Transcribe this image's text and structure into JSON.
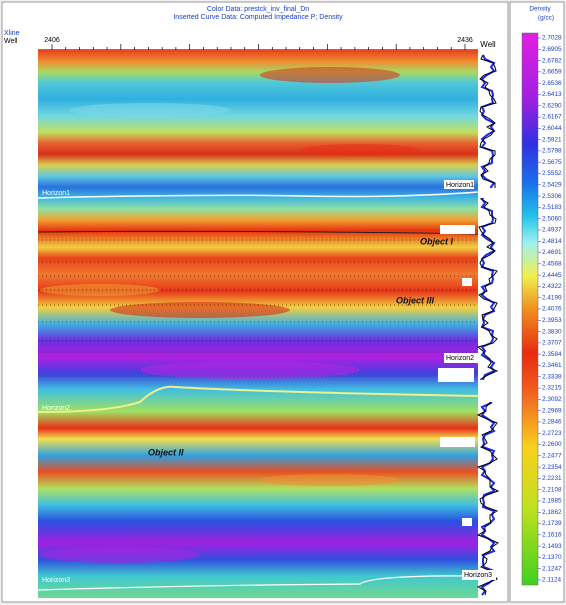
{
  "header": {
    "line1": "Color Data: prestck_inv_final_Dn",
    "line2": "Inserted Curve Data: Computed Impedance P; Density"
  },
  "axis": {
    "xline_label": "Xline",
    "well_label": "Well",
    "ticks": [
      "2406",
      "2436"
    ],
    "well_track_label": "Well"
  },
  "colorbar": {
    "title": "Density",
    "unit": "(g/cc)",
    "labels": [
      "2.7028",
      "2.6905",
      "2.6782",
      "2.6659",
      "2.6536",
      "2.6413",
      "2.6290",
      "2.6167",
      "2.6044",
      "2.5921",
      "2.5798",
      "2.5675",
      "2.5552",
      "2.5429",
      "2.5306",
      "2.5183",
      "2.5060",
      "2.4937",
      "2.4814",
      "2.4691",
      "2.4568",
      "2.4445",
      "2.4322",
      "2.4199",
      "2.4076",
      "2.3953",
      "2.3830",
      "2.3707",
      "2.3584",
      "2.3461",
      "2.3338",
      "2.3215",
      "2.3092",
      "2.2969",
      "2.2846",
      "2.2723",
      "2.2600",
      "2.2477",
      "2.2354",
      "2.2231",
      "2.2108",
      "2.1985",
      "2.1862",
      "2.1739",
      "2.1616",
      "2.1493",
      "2.1370",
      "2.1247",
      "2.1124"
    ]
  },
  "annotations": {
    "horizon1_left": "Horizon1",
    "horizon1_right": "Horizon1",
    "object_1": "Object I",
    "object_3": "Object III",
    "horizon2_right": "Horizon2",
    "horizon2_left": "Horizon2",
    "object_2": "Object II",
    "horizon3_left": "Horizon3",
    "horizon3_right": "Horizon3"
  }
}
